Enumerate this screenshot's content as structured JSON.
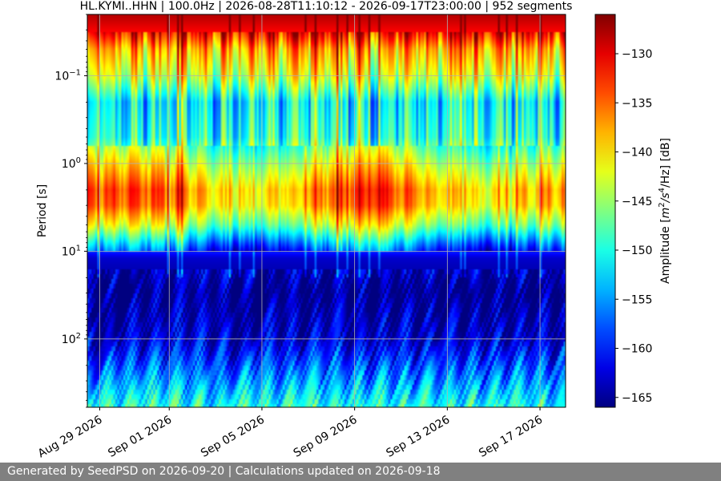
{
  "chart_data": {
    "type": "heatmap",
    "title": "HL.KYMI..HHN | 100.0Hz | 2026-08-28T11:10:12 - 2026-09-17T23:00:00 | 952 segments",
    "ylabel": "Period [s]",
    "y_scale": "log",
    "y_inverted": true,
    "ylim": [
      0.02,
      600
    ],
    "y_ticks": [
      {
        "value": 0.1,
        "base": "10",
        "exp": "−1"
      },
      {
        "value": 1,
        "base": "10",
        "exp": "0"
      },
      {
        "value": 10,
        "base": "10",
        "exp": "1"
      },
      {
        "value": 100,
        "base": "10",
        "exp": "2"
      }
    ],
    "x_type": "date",
    "xlim": [
      "2026-08-28T11:10:12",
      "2026-09-18T02:30:00"
    ],
    "x_ticks": [
      "Aug 29 2026",
      "Sep 01 2026",
      "Sep 05 2026",
      "Sep 09 2026",
      "Sep 13 2026",
      "Sep 17 2026"
    ],
    "x_tick_values": [
      "2026-08-29",
      "2026-09-01",
      "2026-09-05",
      "2026-09-09",
      "2026-09-13",
      "2026-09-17"
    ],
    "colorbar": {
      "label_prefix": "Amplitude [",
      "label_unit": "m",
      "label_sup1": "2",
      "label_mid": "/s",
      "label_sup2": "4",
      "label_suffix": "/Hz] [dB]",
      "colormap": "jet",
      "range": [
        -166,
        -126
      ],
      "ticks": [
        "−130",
        "−135",
        "−140",
        "−145",
        "−150",
        "−155",
        "−160",
        "−165"
      ],
      "tick_values": [
        -130,
        -135,
        -140,
        -145,
        -150,
        -155,
        -160,
        -165
      ]
    },
    "grid": true,
    "period_profile_db": [
      {
        "period": 0.02,
        "db": -128
      },
      {
        "period": 0.032,
        "db": -131
      },
      {
        "period": 0.05,
        "db": -138
      },
      {
        "period": 0.1,
        "db": -143
      },
      {
        "period": 0.2,
        "db": -152
      },
      {
        "period": 0.5,
        "db": -150
      },
      {
        "period": 1,
        "db": -143
      },
      {
        "period": 2,
        "db": -137
      },
      {
        "period": 3,
        "db": -138
      },
      {
        "period": 5,
        "db": -145
      },
      {
        "period": 8,
        "db": -155
      },
      {
        "period": 12,
        "db": -163
      },
      {
        "period": 30,
        "db": -166
      },
      {
        "period": 100,
        "db": -163
      },
      {
        "period": 200,
        "db": -158
      },
      {
        "period": 600,
        "db": -150
      }
    ]
  },
  "footer": {
    "text": "Generated by SeedPSD on 2026-09-20 | Calculations updated on 2026-09-18"
  }
}
